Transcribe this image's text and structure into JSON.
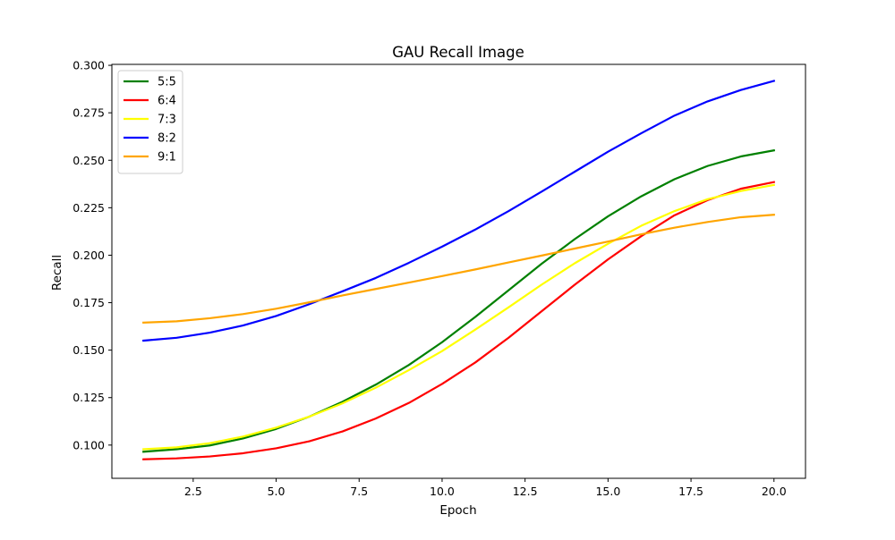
{
  "chart_data": {
    "type": "line",
    "title": "GAU Recall Image",
    "xlabel": "Epoch",
    "ylabel": "Recall",
    "xlim": [
      0.05,
      20.95
    ],
    "ylim": [
      0.0825,
      0.3005
    ],
    "xticks": [
      2.5,
      5.0,
      7.5,
      10.0,
      12.5,
      15.0,
      17.5,
      20.0
    ],
    "xtick_labels": [
      "2.5",
      "5.0",
      "7.5",
      "10.0",
      "12.5",
      "15.0",
      "17.5",
      "20.0"
    ],
    "yticks": [
      0.1,
      0.125,
      0.15,
      0.175,
      0.2,
      0.225,
      0.25,
      0.275,
      0.3
    ],
    "ytick_labels": [
      "0.100",
      "0.125",
      "0.150",
      "0.175",
      "0.200",
      "0.225",
      "0.250",
      "0.275",
      "0.300"
    ],
    "grid": false,
    "legend_position": "upper-left",
    "x": [
      1,
      2,
      3,
      4,
      5,
      6,
      7,
      8,
      9,
      10,
      11,
      12,
      13,
      14,
      15,
      16,
      17,
      18,
      19,
      20
    ],
    "series": [
      {
        "name": "5:5",
        "color": "#008000",
        "values": [
          0.0965,
          0.0978,
          0.0998,
          0.1035,
          0.1085,
          0.115,
          0.1228,
          0.1318,
          0.1422,
          0.1542,
          0.1675,
          0.1815,
          0.1955,
          0.2085,
          0.2205,
          0.231,
          0.24,
          0.247,
          0.252,
          0.2552
        ]
      },
      {
        "name": "6:4",
        "color": "#ff0000",
        "values": [
          0.0925,
          0.093,
          0.094,
          0.0957,
          0.0983,
          0.102,
          0.1072,
          0.114,
          0.1222,
          0.1322,
          0.1435,
          0.1565,
          0.1705,
          0.1845,
          0.1978,
          0.21,
          0.221,
          0.229,
          0.235,
          0.2385
        ]
      },
      {
        "name": "7:3",
        "color": "#ffff00",
        "values": [
          0.0978,
          0.0988,
          0.101,
          0.1045,
          0.1092,
          0.115,
          0.122,
          0.1302,
          0.1395,
          0.1495,
          0.1608,
          0.1725,
          0.1845,
          0.1958,
          0.206,
          0.2155,
          0.2232,
          0.2295,
          0.2338,
          0.237
        ]
      },
      {
        "name": "8:2",
        "color": "#0000ff",
        "values": [
          0.155,
          0.1565,
          0.1592,
          0.163,
          0.168,
          0.1742,
          0.181,
          0.188,
          0.196,
          0.2045,
          0.2135,
          0.2232,
          0.2335,
          0.244,
          0.2545,
          0.2642,
          0.2735,
          0.281,
          0.287,
          0.2918
        ]
      },
      {
        "name": "9:1",
        "color": "#ffa500",
        "values": [
          0.1645,
          0.1652,
          0.1668,
          0.169,
          0.1718,
          0.1752,
          0.1788,
          0.1822,
          0.1856,
          0.189,
          0.1925,
          0.1962,
          0.1998,
          0.2035,
          0.2072,
          0.211,
          0.2145,
          0.2175,
          0.22,
          0.2213
        ]
      }
    ]
  }
}
